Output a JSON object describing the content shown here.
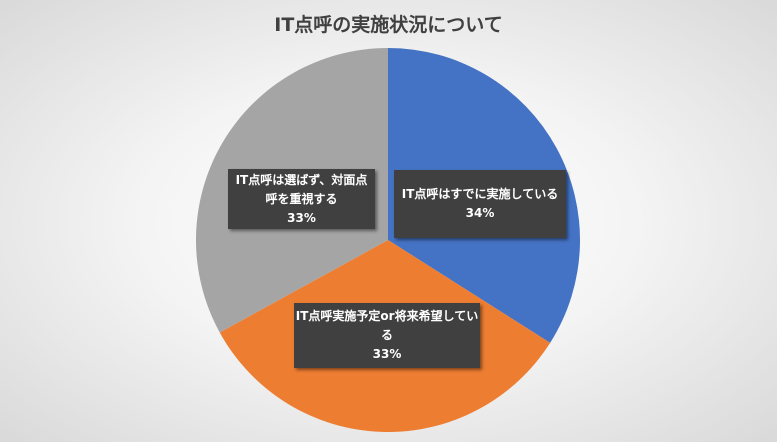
{
  "chart_data": {
    "type": "pie",
    "title": "IT点呼の実施状況について",
    "start": "top",
    "direction": "clockwise",
    "slices": [
      {
        "label": "IT点呼はすでに実施している",
        "value": 34,
        "display": "34%",
        "color": "#4472C4"
      },
      {
        "label": "IT点呼実施予定or将来希望している",
        "value": 33,
        "display": "33%",
        "color": "#ED7D31"
      },
      {
        "label": "IT点呼は選ばず、対面点呼を重視する",
        "value": 33,
        "display": "33%",
        "color": "#A5A5A5"
      }
    ]
  }
}
